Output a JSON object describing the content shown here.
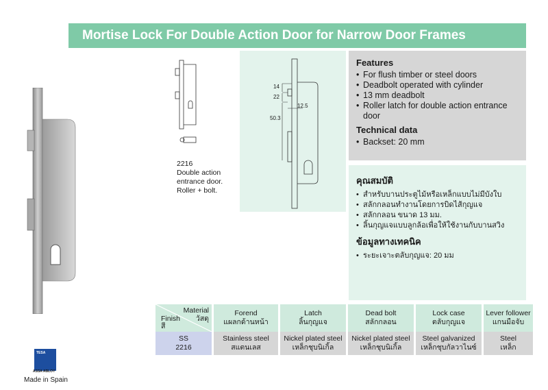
{
  "title": "Mortise Lock For Double Action Door for Narrow Door Frames",
  "features": {
    "heading": "Features",
    "items": [
      "For flush timber or steel doors",
      "Deadbolt operated with cylinder",
      "13 mm deadbolt",
      "Roller latch for double action entrance door"
    ],
    "tech_heading": "Technical data",
    "tech_items": [
      "Backset: 20 mm"
    ]
  },
  "features_th": {
    "heading": "คุณสมบัติ",
    "items": [
      "สำหรับบานประตูไม้หรือเหล็กแบบไม่มีบังใบ",
      "สลักกลอนทำงานโดยการบิดไส้กุญแจ",
      "สลักกลอน ขนาด 13 มม.",
      "ลิ้นกุญแจแบบลูกล้อเพื่อให้ใช้งานกับบานสวิง"
    ],
    "tech_heading": "ข้อมูลทางเทคนิค",
    "tech_items": [
      "ระยะเจาะตลับกุญแจ: 20 มม"
    ]
  },
  "diagram": {
    "dim_14": "14",
    "dim_22": "22",
    "dim_12_5": "12.5",
    "dim_50_3": "50.3"
  },
  "caption": {
    "code": "2216",
    "line1": "Double action",
    "line2": "entrance door.",
    "line3": "Roller + bolt."
  },
  "table": {
    "corner_material": "Material",
    "corner_material_th": "วัสดุ",
    "corner_finish": "Finish",
    "corner_finish_th": "สี",
    "headers": [
      {
        "en": "Forend",
        "th": "แผลกด้านหน้า"
      },
      {
        "en": "Latch",
        "th": "ลิ้นกุญแจ"
      },
      {
        "en": "Dead bolt",
        "th": "สลักกลอน"
      },
      {
        "en": "Lock case",
        "th": "ตลับกุญแจ"
      },
      {
        "en": "Lever follower",
        "th": "แกนมือจับ"
      }
    ],
    "row_finish": "SS",
    "row_code": "2216",
    "cells": [
      {
        "en": "Stainless steel",
        "th": "สแตนเลส"
      },
      {
        "en": "Nickel plated steel",
        "th": "เหล็กชุบนิเกิ้ล"
      },
      {
        "en": "Nickel plated steel",
        "th": "เหล็กชุบนิเกิ้ล"
      },
      {
        "en": "Steel galvanized",
        "th": "เหล็กชุบกัลวาไนซ์"
      },
      {
        "en": "Steel",
        "th": "เหล็ก"
      }
    ]
  },
  "logo": {
    "brand": "TESA",
    "parent": "ASSA ABLOY",
    "made_in": "Made in Spain"
  },
  "colors": {
    "title_green": "#7fcaa7",
    "light_green": "#e3f3ec",
    "gray": "#d6d6d6",
    "lavender": "#cdd3ec"
  }
}
